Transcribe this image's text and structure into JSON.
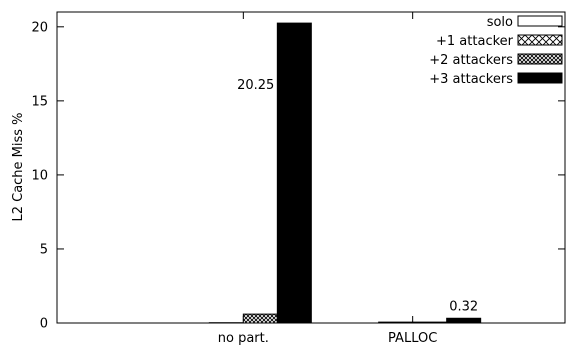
{
  "chart_data": {
    "type": "bar",
    "categories": [
      "no part.",
      "PALLOC"
    ],
    "ylabel": "L2 Cache Miss %",
    "ylim": [
      0,
      21
    ],
    "yticks": [
      0,
      5,
      10,
      15,
      20
    ],
    "grid": false,
    "legend_position": "top-right",
    "series": [
      {
        "name": "solo",
        "pattern": "empty",
        "values": [
          0.0,
          0.0
        ]
      },
      {
        "name": "+1 attacker",
        "pattern": "diagonal-cross",
        "values": [
          0.02,
          0.06
        ]
      },
      {
        "name": "+2 attackers",
        "pattern": "dense-cross",
        "values": [
          0.6,
          0.06
        ]
      },
      {
        "name": "+3 attackers",
        "pattern": "solid",
        "values": [
          20.25,
          0.32
        ]
      }
    ],
    "annotations": [
      {
        "text": "20.25",
        "category": "no part.",
        "series": "+3 attackers",
        "value": 20.25
      },
      {
        "text": "0.32",
        "category": "PALLOC",
        "series": "+3 attackers",
        "value": 0.32
      }
    ]
  }
}
